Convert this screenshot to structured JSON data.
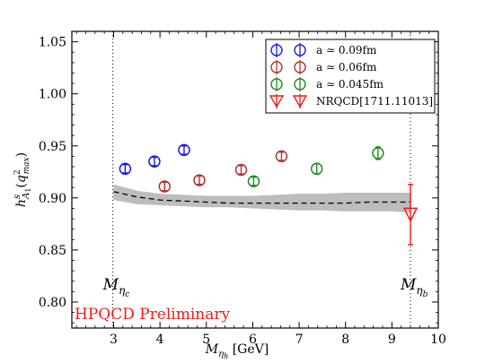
{
  "chart_data": {
    "type": "scatter",
    "xlabel": "M_{η_h} [GeV]",
    "ylabel": "h^s_{A1}(q²_max)",
    "xlim": [
      2.1,
      10.0
    ],
    "ylim": [
      0.775,
      1.06
    ],
    "xticks": [
      {
        "v": 3,
        "label": "3"
      },
      {
        "v": 4,
        "label": "4"
      },
      {
        "v": 5,
        "label": "5"
      },
      {
        "v": 6,
        "label": "6"
      },
      {
        "v": 7,
        "label": "7"
      },
      {
        "v": 8,
        "label": "8"
      },
      {
        "v": 9,
        "label": "9"
      },
      {
        "v": 10,
        "label": "10"
      }
    ],
    "yticks": [
      {
        "v": 0.8,
        "label": "0.80"
      },
      {
        "v": 0.85,
        "label": "0.85"
      },
      {
        "v": 0.9,
        "label": "0.90"
      },
      {
        "v": 0.95,
        "label": "0.95"
      },
      {
        "v": 1.0,
        "label": "1.00"
      },
      {
        "v": 1.05,
        "label": "1.05"
      }
    ],
    "grid": false,
    "legend_position": "top-right",
    "series": [
      {
        "name": "a ≃ 0.09fm",
        "color": "#1a1aee",
        "marker": "circle",
        "points": [
          {
            "x": 3.25,
            "y": 0.928,
            "err": 0.004
          },
          {
            "x": 3.88,
            "y": 0.935,
            "err": 0.004
          },
          {
            "x": 4.52,
            "y": 0.946,
            "err": 0.004
          }
        ]
      },
      {
        "name": "a ≃ 0.06fm",
        "color": "#b03535",
        "marker": "circle",
        "points": [
          {
            "x": 4.1,
            "y": 0.911,
            "err": 0.004
          },
          {
            "x": 4.85,
            "y": 0.917,
            "err": 0.004
          },
          {
            "x": 5.75,
            "y": 0.927,
            "err": 0.004
          },
          {
            "x": 6.62,
            "y": 0.94,
            "err": 0.004
          }
        ]
      },
      {
        "name": "a ≃ 0.045fm",
        "color": "#1e8c1e",
        "marker": "circle",
        "points": [
          {
            "x": 6.02,
            "y": 0.916,
            "err": 0.004
          },
          {
            "x": 7.38,
            "y": 0.928,
            "err": 0.005
          },
          {
            "x": 8.7,
            "y": 0.943,
            "err": 0.006
          }
        ]
      },
      {
        "name": "NRQCD[1711.11013]",
        "color": "#ee1a1a",
        "marker": "triangle-down",
        "points": [
          {
            "x": 9.4,
            "y": 0.884,
            "err": 0.029
          }
        ]
      }
    ],
    "fit_band": {
      "x": [
        3.0,
        3.5,
        4.0,
        4.5,
        5.0,
        5.5,
        6.0,
        6.5,
        7.0,
        7.5,
        8.0,
        8.5,
        9.0,
        9.4
      ],
      "y": [
        0.906,
        0.901,
        0.898,
        0.897,
        0.896,
        0.895,
        0.895,
        0.895,
        0.895,
        0.895,
        0.895,
        0.896,
        0.896,
        0.896
      ],
      "upper": [
        0.913,
        0.907,
        0.904,
        0.903,
        0.902,
        0.902,
        0.902,
        0.903,
        0.904,
        0.904,
        0.905,
        0.905,
        0.905,
        0.905
      ],
      "lower": [
        0.898,
        0.894,
        0.893,
        0.892,
        0.891,
        0.891,
        0.89,
        0.889,
        0.888,
        0.888,
        0.887,
        0.887,
        0.887,
        0.886
      ]
    },
    "vlines": [
      {
        "x": 2.984,
        "label": "M_{η_c}"
      },
      {
        "x": 9.399,
        "label": "M_{η_b}"
      }
    ],
    "annotation": {
      "text": "HPQCD Preliminary",
      "color": "#ee1a1a"
    }
  }
}
